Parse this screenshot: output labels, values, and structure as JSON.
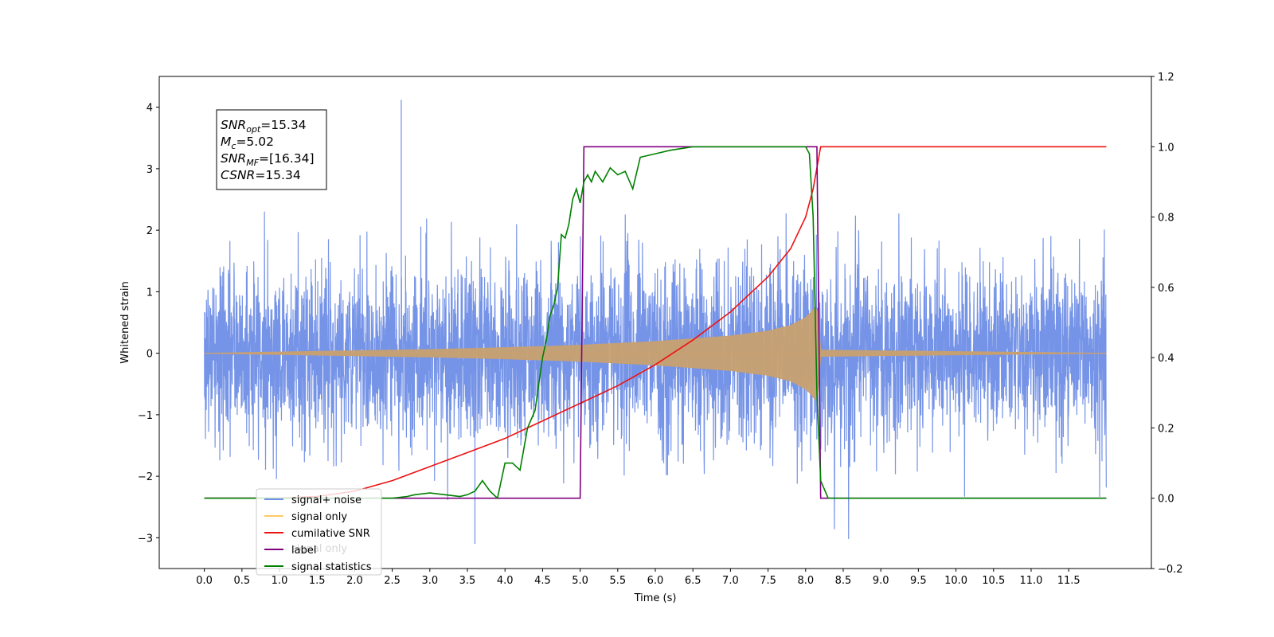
{
  "chart_data": {
    "type": "line",
    "xlabel": "Time (s)",
    "ylabel": "Whitened strain",
    "xlim": [
      -0.6,
      12.6
    ],
    "ylim": [
      -3.5,
      4.5
    ],
    "y2lim": [
      -0.2,
      1.2
    ],
    "grid": false,
    "legend_position": "lower-left",
    "x_ticks": [
      0.0,
      0.5,
      1.0,
      1.5,
      2.0,
      2.5,
      3.0,
      3.5,
      4.0,
      4.5,
      5.0,
      5.5,
      6.0,
      6.5,
      7.0,
      7.5,
      8.0,
      8.5,
      9.0,
      9.5,
      10.0,
      10.5,
      11.0,
      11.5
    ],
    "x_tick_labels": [
      "0.0",
      "0.5",
      "1.0",
      "1.5",
      "2.0",
      "2.5",
      "3.0",
      "3.5",
      "4.0",
      "4.5",
      "5.0",
      "5.5",
      "6.0",
      "6.5",
      "7.0",
      "7.5",
      "8.0",
      "8.5",
      "9.0",
      "9.5",
      "10.0",
      "10.5",
      "11.0",
      "11.5"
    ],
    "y_ticks": [
      -3,
      -2,
      -1,
      0,
      1,
      2,
      3,
      4
    ],
    "y_tick_labels": [
      "−3",
      "−2",
      "−1",
      "0",
      "1",
      "2",
      "3",
      "4"
    ],
    "y2_ticks": [
      -0.2,
      0.0,
      0.2,
      0.4,
      0.6,
      0.8,
      1.0,
      1.2
    ],
    "y2_tick_labels": [
      "−0.2",
      "0.0",
      "0.2",
      "0.4",
      "0.6",
      "0.8",
      "1.0",
      "1.2"
    ],
    "annotations": [
      {
        "symbol": "SNR",
        "subscript": "opt",
        "value": "=15.34"
      },
      {
        "symbol": "M",
        "subscript": "c",
        "value": "=5.02"
      },
      {
        "symbol": "SNR",
        "subscript": "MF",
        "value": "=[16.34]"
      },
      {
        "symbol": "CSNR",
        "subscript": "",
        "value": "=15.34"
      }
    ],
    "legend": [
      {
        "name": "signal+ noise",
        "color": "#6f8ee6"
      },
      {
        "name": "signal only",
        "color": "#ffc966"
      },
      {
        "name": "cumilative SNR",
        "color": "#ee1111"
      },
      {
        "name": "label",
        "color": "#800080"
      },
      {
        "name": "signal statistics",
        "color": "#008000"
      }
    ],
    "hidden_legend_text": "signal only",
    "series": [
      {
        "name": "signal+ noise",
        "axis": "left",
        "color": "#6f8ee6",
        "t_start": 0.0,
        "t_end": 12.0,
        "noise_std": 0.72,
        "max_value": 4.12,
        "min_value": -3.1
      },
      {
        "name": "signal only",
        "axis": "left",
        "color": "#c8a070",
        "t_start": 0.0,
        "merger_time": 8.15,
        "envelope": [
          [
            0.0,
            0.0
          ],
          [
            1.0,
            0.02
          ],
          [
            2.0,
            0.04
          ],
          [
            3.0,
            0.06
          ],
          [
            4.0,
            0.09
          ],
          [
            5.0,
            0.13
          ],
          [
            6.0,
            0.19
          ],
          [
            7.0,
            0.28
          ],
          [
            7.5,
            0.36
          ],
          [
            7.8,
            0.45
          ],
          [
            8.0,
            0.58
          ],
          [
            8.1,
            0.7
          ],
          [
            8.15,
            0.82
          ],
          [
            8.2,
            0.05
          ],
          [
            12.0,
            0.0
          ]
        ]
      },
      {
        "name": "cumilative SNR",
        "axis": "right",
        "color": "#ee1111",
        "x": [
          0.0,
          1.0,
          1.5,
          2.0,
          2.5,
          3.0,
          3.5,
          4.0,
          4.5,
          5.0,
          5.5,
          6.0,
          6.5,
          7.0,
          7.5,
          7.8,
          8.0,
          8.1,
          8.2,
          12.0
        ],
        "y": [
          0.0,
          0.0,
          0.005,
          0.02,
          0.05,
          0.09,
          0.13,
          0.17,
          0.22,
          0.27,
          0.32,
          0.38,
          0.45,
          0.53,
          0.63,
          0.71,
          0.8,
          0.88,
          1.0,
          1.0
        ]
      },
      {
        "name": "label",
        "axis": "right",
        "color": "#800080",
        "x": [
          0.0,
          5.0,
          5.05,
          8.15,
          8.2,
          12.0
        ],
        "y": [
          0.0,
          0.0,
          1.0,
          1.0,
          0.0,
          0.0
        ]
      },
      {
        "name": "signal statistics",
        "axis": "right",
        "color": "#008000",
        "x": [
          0.0,
          2.0,
          2.5,
          2.7,
          2.8,
          3.0,
          3.2,
          3.4,
          3.5,
          3.6,
          3.7,
          3.8,
          3.9,
          4.0,
          4.1,
          4.2,
          4.3,
          4.4,
          4.5,
          4.55,
          4.6,
          4.65,
          4.7,
          4.75,
          4.8,
          4.85,
          4.9,
          4.95,
          5.0,
          5.05,
          5.1,
          5.15,
          5.2,
          5.3,
          5.4,
          5.5,
          5.6,
          5.7,
          5.8,
          6.0,
          6.2,
          6.5,
          7.0,
          7.5,
          8.0,
          8.05,
          8.1,
          8.15,
          8.2,
          8.3,
          12.0
        ],
        "y": [
          0.0,
          0.0,
          0.0,
          0.005,
          0.01,
          0.015,
          0.01,
          0.005,
          0.01,
          0.02,
          0.05,
          0.02,
          0.0,
          0.1,
          0.1,
          0.08,
          0.2,
          0.25,
          0.4,
          0.45,
          0.52,
          0.55,
          0.6,
          0.75,
          0.74,
          0.78,
          0.85,
          0.88,
          0.84,
          0.9,
          0.92,
          0.9,
          0.93,
          0.9,
          0.94,
          0.92,
          0.93,
          0.88,
          0.97,
          0.98,
          0.99,
          1.0,
          1.0,
          1.0,
          1.0,
          0.98,
          0.8,
          0.3,
          0.05,
          0.0,
          0.0
        ]
      }
    ]
  }
}
